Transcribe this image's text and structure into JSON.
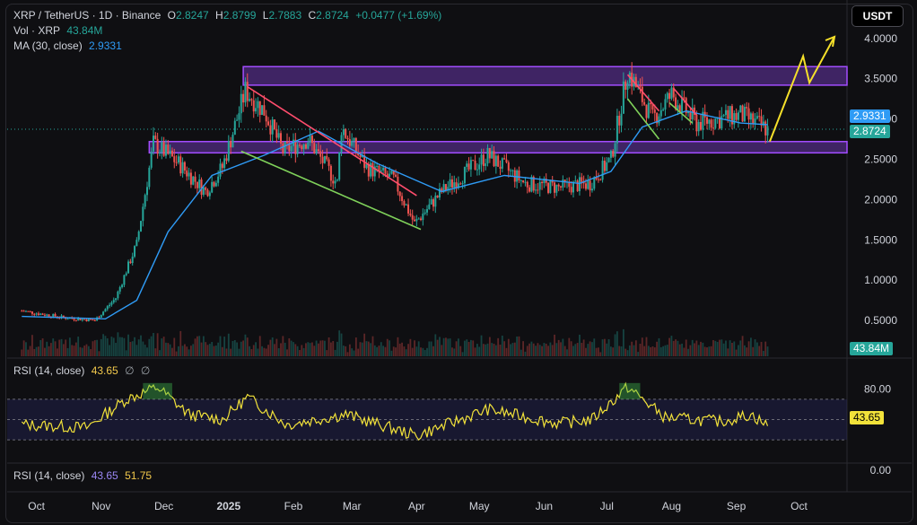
{
  "header": {
    "symbol": "XRP / TetherUS · 1D · Binance",
    "o_label": "O",
    "o": "2.8247",
    "h_label": "H",
    "h": "2.8799",
    "l_label": "L",
    "l": "2.7883",
    "c_label": "C",
    "c": "2.8724",
    "change": "+0.0477 (+1.69%)",
    "vol_label": "Vol · XRP",
    "vol": "43.84M",
    "ma_label": "MA (30, close)",
    "ma": "2.9331"
  },
  "currency_button": "USDT",
  "price_axis": [
    "4.0000",
    "3.5000",
    "3.0000",
    "2.5000",
    "2.0000",
    "1.5000",
    "1.0000",
    "0.5000"
  ],
  "tags": {
    "ma": "2.9331",
    "close": "2.8724",
    "volume": "43.84M",
    "rsi": "43.65"
  },
  "rsi_panel": {
    "label": "RSI (14, close)",
    "value": "43.65",
    "extra1": "∅",
    "extra2": "∅",
    "levels": [
      "80.00",
      "0.00"
    ]
  },
  "rsi_panel2": {
    "label": "RSI (14, close)",
    "value": "43.65",
    "ma_value": "51.75"
  },
  "time_axis": [
    "Oct",
    "Nov",
    "Dec",
    "2025",
    "Feb",
    "Mar",
    "Apr",
    "May",
    "Jun",
    "Jul",
    "Aug",
    "Sep",
    "Oct"
  ],
  "colors": {
    "up": "#26a69a",
    "down": "#ef5350",
    "ma": "#2f9bf5",
    "rsi": "#f2e23a",
    "zone": "#9b4dff",
    "arrow": "#f5e02a"
  },
  "chart_data": {
    "type": "candlestick",
    "pair": "XRP/USDT",
    "interval": "1D",
    "x_start": "2024-10",
    "x_end": "2025-10",
    "ylim": [
      0,
      4.1
    ],
    "scale": "linear",
    "close_path": [
      [
        "2024-10-01",
        0.62
      ],
      [
        "2024-10-20",
        0.54
      ],
      [
        "2024-11-05",
        0.5
      ],
      [
        "2024-11-15",
        0.78
      ],
      [
        "2024-11-25",
        1.45
      ],
      [
        "2024-12-03",
        2.7
      ],
      [
        "2024-12-15",
        2.45
      ],
      [
        "2024-12-28",
        2.1
      ],
      [
        "2025-01-05",
        2.4
      ],
      [
        "2025-01-16",
        3.35
      ],
      [
        "2025-01-25",
        3.1
      ],
      [
        "2025-02-03",
        2.6
      ],
      [
        "2025-02-15",
        2.75
      ],
      [
        "2025-03-01",
        2.2
      ],
      [
        "2025-03-03",
        2.9
      ],
      [
        "2025-03-15",
        2.4
      ],
      [
        "2025-03-28",
        2.25
      ],
      [
        "2025-04-07",
        1.7
      ],
      [
        "2025-04-20",
        2.1
      ],
      [
        "2025-05-12",
        2.55
      ],
      [
        "2025-05-30",
        2.2
      ],
      [
        "2025-06-15",
        2.15
      ],
      [
        "2025-06-30",
        2.2
      ],
      [
        "2025-07-10",
        2.5
      ],
      [
        "2025-07-18",
        3.6
      ],
      [
        "2025-07-30",
        3.0
      ],
      [
        "2025-08-08",
        3.3
      ],
      [
        "2025-08-20",
        2.95
      ],
      [
        "2025-09-10",
        3.05
      ],
      [
        "2025-09-23",
        2.87
      ]
    ],
    "ma30_path": [
      [
        "2024-10-01",
        0.55
      ],
      [
        "2024-11-10",
        0.52
      ],
      [
        "2024-11-25",
        0.75
      ],
      [
        "2024-12-10",
        1.6
      ],
      [
        "2024-12-31",
        2.3
      ],
      [
        "2025-01-25",
        2.55
      ],
      [
        "2025-02-20",
        2.85
      ],
      [
        "2025-03-20",
        2.45
      ],
      [
        "2025-04-20",
        2.1
      ],
      [
        "2025-05-20",
        2.3
      ],
      [
        "2025-06-25",
        2.2
      ],
      [
        "2025-07-10",
        2.35
      ],
      [
        "2025-07-25",
        2.9
      ],
      [
        "2025-08-15",
        3.1
      ],
      [
        "2025-09-10",
        2.95
      ],
      [
        "2025-09-23",
        2.93
      ]
    ],
    "zones": [
      {
        "label": "resistance",
        "from": 3.42,
        "to": 3.65,
        "start": "2025-01-15"
      },
      {
        "label": "support",
        "from": 2.58,
        "to": 2.72,
        "start": "2024-12-01"
      }
    ],
    "trendlines": [
      {
        "kind": "down",
        "color": "red",
        "points": [
          [
            "2025-01-17",
            3.4
          ],
          [
            "2025-04-08",
            2.05
          ]
        ]
      },
      {
        "kind": "down",
        "color": "green",
        "points": [
          [
            "2025-01-14",
            2.6
          ],
          [
            "2025-04-10",
            1.63
          ]
        ]
      },
      {
        "kind": "down",
        "color": "red",
        "points": [
          [
            "2025-07-18",
            3.55
          ],
          [
            "2025-08-02",
            3.1
          ]
        ]
      },
      {
        "kind": "down",
        "color": "green",
        "points": [
          [
            "2025-07-18",
            3.25
          ],
          [
            "2025-08-02",
            2.75
          ]
        ]
      },
      {
        "kind": "down",
        "color": "red",
        "points": [
          [
            "2025-08-09",
            3.38
          ],
          [
            "2025-08-20",
            3.05
          ]
        ]
      },
      {
        "kind": "down",
        "color": "green",
        "points": [
          [
            "2025-08-07",
            3.2
          ],
          [
            "2025-08-18",
            2.95
          ]
        ]
      }
    ],
    "projection": [
      [
        "2025-09-24",
        2.72
      ],
      [
        "2025-10-10",
        3.78
      ],
      [
        "2025-10-13",
        3.45
      ],
      [
        "2025-10-25",
        4.02
      ]
    ],
    "rsi": {
      "period": 14,
      "current": 43.65,
      "ma": 51.75,
      "band": [
        30,
        70
      ],
      "path": [
        [
          "2024-10-01",
          45
        ],
        [
          "2024-11-01",
          42
        ],
        [
          "2024-11-20",
          70
        ],
        [
          "2024-12-05",
          82
        ],
        [
          "2024-12-20",
          55
        ],
        [
          "2025-01-05",
          50
        ],
        [
          "2025-01-17",
          72
        ],
        [
          "2025-02-05",
          45
        ],
        [
          "2025-03-05",
          55
        ],
        [
          "2025-04-08",
          34
        ],
        [
          "2025-05-12",
          60
        ],
        [
          "2025-06-15",
          46
        ],
        [
          "2025-07-01",
          50
        ],
        [
          "2025-07-18",
          82
        ],
        [
          "2025-08-05",
          52
        ],
        [
          "2025-09-01",
          48
        ],
        [
          "2025-09-15",
          55
        ],
        [
          "2025-09-23",
          43.65
        ]
      ]
    }
  }
}
